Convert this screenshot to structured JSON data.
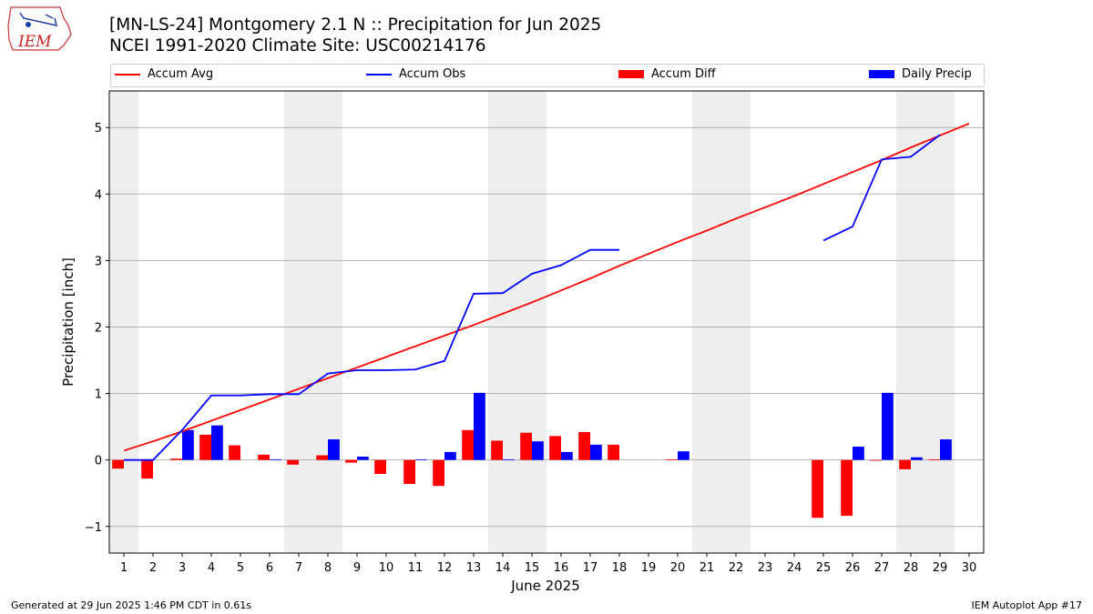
{
  "header": {
    "title_line1": "[MN-LS-24] Montgomery 2.1 N :: Precipitation for Jun 2025",
    "title_line2": "NCEI 1991-2020 Climate Site: USC00214176",
    "logo_text": "IEM"
  },
  "footer": {
    "left": "Generated at 29 Jun 2025 1:46 PM CDT in 0.61s",
    "right": "IEM Autoplot App #17"
  },
  "colors": {
    "avg": "#ff0000",
    "obs": "#0000ff",
    "diff": "#ff0000",
    "daily": "#0000ff",
    "weekend": "#eeeeee",
    "grid": "#b0b0b0"
  },
  "chart_data": {
    "type": "bar",
    "xlabel": "June 2025",
    "ylabel": "Precipitation [inch]",
    "ylim": [
      -1.4,
      5.55
    ],
    "xlim": [
      0.5,
      30.5
    ],
    "yticks": [
      -1,
      0,
      1,
      2,
      3,
      4,
      5
    ],
    "ytick_labels": [
      "−1",
      "0",
      "1",
      "2",
      "3",
      "4",
      "5"
    ],
    "xticks": [
      1,
      2,
      3,
      4,
      5,
      6,
      7,
      8,
      9,
      10,
      11,
      12,
      13,
      14,
      15,
      16,
      17,
      18,
      19,
      20,
      21,
      22,
      23,
      24,
      25,
      26,
      27,
      28,
      29,
      30
    ],
    "grid": "y",
    "legend_position": "top",
    "legend": [
      "Accum Avg",
      "Accum Obs",
      "Accum Diff",
      "Daily Precip"
    ],
    "weekend_days": [
      1,
      7,
      8,
      14,
      15,
      21,
      22,
      28,
      29
    ],
    "series": [
      {
        "name": "Accum Avg",
        "kind": "line",
        "days": [
          1,
          2,
          3,
          4,
          5,
          6,
          7,
          8,
          9,
          10,
          11,
          12,
          13,
          14,
          15,
          16,
          17,
          18,
          19,
          20,
          21,
          22,
          23,
          24,
          25,
          26,
          27,
          28,
          29,
          30
        ],
        "values": [
          0.14,
          0.28,
          0.43,
          0.59,
          0.75,
          0.91,
          1.07,
          1.23,
          1.39,
          1.55,
          1.71,
          1.87,
          2.03,
          2.2,
          2.37,
          2.55,
          2.73,
          2.92,
          3.1,
          3.28,
          3.45,
          3.63,
          3.8,
          3.97,
          4.15,
          4.33,
          4.51,
          4.7,
          4.88,
          5.06
        ]
      },
      {
        "name": "Accum Obs",
        "kind": "line",
        "segments": [
          {
            "days": [
              1,
              2,
              3,
              4,
              5,
              6,
              7,
              8,
              9,
              10,
              11,
              12,
              13,
              14,
              15,
              16,
              17,
              18
            ],
            "values": [
              0.0,
              0.0,
              0.45,
              0.97,
              0.97,
              0.99,
              0.99,
              1.3,
              1.35,
              1.35,
              1.36,
              1.49,
              2.5,
              2.51,
              2.8,
              2.93,
              3.16,
              3.16
            ]
          },
          {
            "days": [
              25,
              26,
              27,
              28,
              29
            ],
            "values": [
              3.3,
              3.51,
              4.52,
              4.56,
              4.89
            ]
          }
        ]
      },
      {
        "name": "Accum Diff",
        "kind": "bar",
        "days": [
          1,
          2,
          3,
          4,
          5,
          6,
          7,
          8,
          9,
          10,
          11,
          12,
          13,
          14,
          15,
          16,
          17,
          18,
          20,
          25,
          26,
          27,
          28,
          29
        ],
        "values": [
          -0.13,
          -0.28,
          0.02,
          0.38,
          0.22,
          0.08,
          -0.07,
          0.07,
          -0.04,
          -0.21,
          -0.36,
          -0.39,
          0.45,
          0.29,
          0.41,
          0.36,
          0.42,
          0.23,
          0.01,
          -0.87,
          -0.84,
          -0.01,
          -0.14,
          0.01
        ]
      },
      {
        "name": "Daily Precip",
        "kind": "bar",
        "days": [
          3,
          4,
          6,
          8,
          9,
          11,
          12,
          13,
          14,
          15,
          16,
          17,
          20,
          26,
          27,
          28,
          29
        ],
        "values": [
          0.45,
          0.52,
          0.01,
          0.31,
          0.05,
          0.01,
          0.12,
          1.01,
          0.01,
          0.28,
          0.12,
          0.23,
          0.13,
          0.2,
          1.01,
          0.04,
          0.31
        ]
      }
    ]
  }
}
